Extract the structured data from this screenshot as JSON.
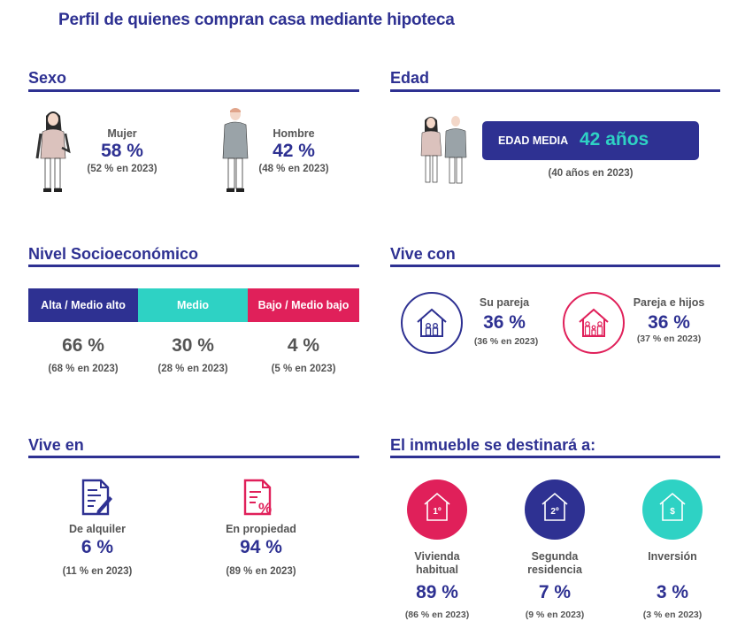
{
  "title": "Perfil de quienes compran casa mediante hipoteca",
  "colors": {
    "navy": "#2e3192",
    "teal": "#2ed2c4",
    "pink": "#e0205a",
    "grey": "#555555"
  },
  "sexo": {
    "title": "Sexo",
    "mujer": {
      "label": "Mujer",
      "value": "58 %",
      "note": "(52 % en 2023)",
      "icon": "woman-figure-icon"
    },
    "hombre": {
      "label": "Hombre",
      "value": "42 %",
      "note": "(48 % en 2023)",
      "icon": "man-figure-icon"
    }
  },
  "edad": {
    "title": "Edad",
    "badge_label": "EDAD MEDIA",
    "badge_value": "42 años",
    "note": "(40 años en 2023)",
    "icon": "couple-figure-icon"
  },
  "nivel": {
    "title": "Nivel Socioeconómico",
    "segments": [
      {
        "label": "Alta / Medio alto",
        "value": "66 %",
        "note": "(68 % en 2023)",
        "color": "#2e3192"
      },
      {
        "label": "Medio",
        "value": "30 %",
        "note": "(28 % en 2023)",
        "color": "#2ed2c4"
      },
      {
        "label": "Bajo / Medio bajo",
        "value": "4 %",
        "note": "(5 % en 2023)",
        "color": "#e0205a"
      }
    ]
  },
  "vivecon": {
    "title": "Vive con",
    "items": [
      {
        "label": "Su pareja",
        "value": "36 %",
        "note": "(36 % en 2023)",
        "icon": "house-couple-icon"
      },
      {
        "label": "Pareja e hijos",
        "value": "36 %",
        "note": "(37 % en 2023)",
        "icon": "house-family-icon"
      }
    ]
  },
  "viveen": {
    "title": "Vive en",
    "items": [
      {
        "label": "De alquiler",
        "value": "6 %",
        "note": "(11 % en 2023)",
        "icon": "rental-document-icon"
      },
      {
        "label": "En propiedad",
        "value": "94 %",
        "note": "(89 % en 2023)",
        "icon": "property-document-icon"
      }
    ]
  },
  "destino": {
    "title": "El inmueble se destinará a:",
    "items": [
      {
        "label_line1": "Vivienda",
        "label_line2": "habitual",
        "value": "89 %",
        "note": "(86 % en 2023)",
        "icon_text": "1º",
        "color": "#e0205a"
      },
      {
        "label_line1": "Segunda",
        "label_line2": "residencia",
        "value": "7 %",
        "note": "(9 % en 2023)",
        "icon_text": "2º",
        "color": "#2e3192"
      },
      {
        "label_line1": "Inversión",
        "label_line2": "",
        "value": "3 %",
        "note": "(3 % en 2023)",
        "icon_text": "$",
        "color": "#2ed2c4"
      }
    ]
  }
}
